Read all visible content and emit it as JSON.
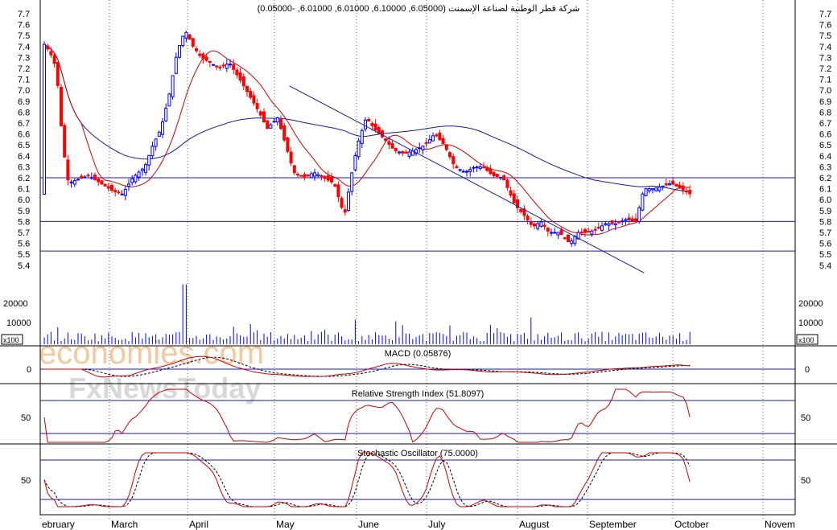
{
  "chart_data": {
    "type": "candlestick",
    "title": "شركة قطر الوطنية لصناعة الإسمنت (6.05000, 6.10000, 6.01000, 6.01000, -0.05000)",
    "months": [
      "ebruary",
      "March",
      "April",
      "May",
      "June",
      "July",
      "August",
      "September",
      "October",
      "Novem"
    ],
    "price_ticks": [
      "7.7",
      "7.6",
      "7.5",
      "7.4",
      "7.3",
      "7.2",
      "7.1",
      "7.0",
      "6.9",
      "6.8",
      "6.7",
      "6.6",
      "6.5",
      "6.4",
      "6.3",
      "6.2",
      "6.1",
      "6.0",
      "5.9",
      "5.8",
      "5.7",
      "5.6",
      "5.5",
      "5.4"
    ],
    "ylim": [
      5.35,
      7.75
    ],
    "horizontal_lines": [
      6.2,
      5.8,
      5.53
    ],
    "trendline": [
      [
        0.33,
        7.04
      ],
      [
        0.8,
        5.33
      ]
    ],
    "volume_ticks": [
      "20000",
      "10000"
    ],
    "volume_unit": "x100",
    "macd_label": "MACD (0.05876)",
    "macd_tick": "0",
    "rsi_label": "Relative Strength Index (51.8097)",
    "rsi_tick": "50",
    "stoch_label": "Stochastic Oscillator (75.0000)",
    "stoch_tick": "50",
    "watermark_1": "economies.com",
    "watermark_2": "FxNewsToday",
    "colors": {
      "up": "#0000ff",
      "down": "#ff0000",
      "ma_short": "#cc0000",
      "ma_long": "#1a1a99",
      "line": "#1a1aa0"
    }
  }
}
